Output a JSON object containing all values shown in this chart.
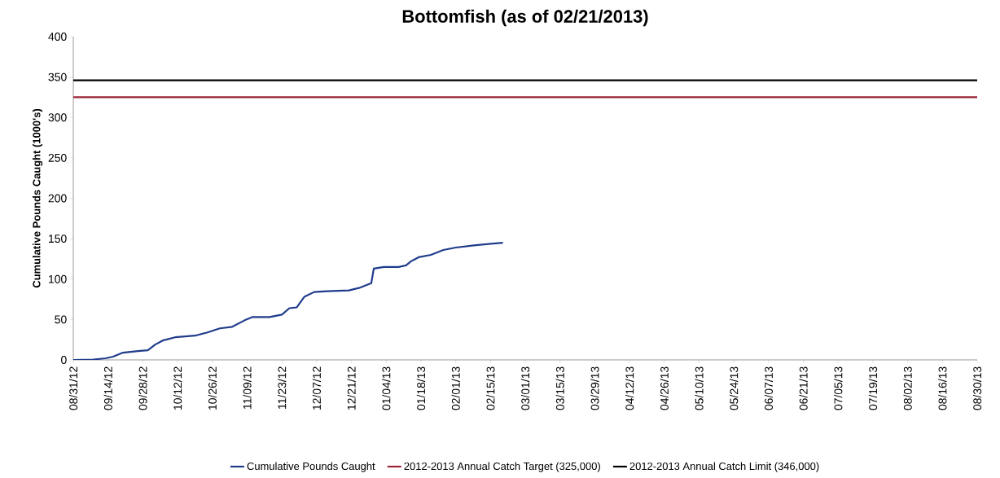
{
  "chart_data": {
    "type": "line",
    "title": "Bottomfish (as of 02/21/2013)",
    "ylabel": "Cumulative Pounds Caught (1000's)",
    "ylim": [
      0,
      400
    ],
    "yticks": [
      0,
      50,
      100,
      150,
      200,
      250,
      300,
      350,
      400
    ],
    "xlim": [
      "2012-08-31",
      "2013-08-30"
    ],
    "xticks": [
      {
        "value": "2012-08-31",
        "label": "08/31/12"
      },
      {
        "value": "2012-09-14",
        "label": "09/14/12"
      },
      {
        "value": "2012-09-28",
        "label": "09/28/12"
      },
      {
        "value": "2012-10-12",
        "label": "10/12/12"
      },
      {
        "value": "2012-10-26",
        "label": "10/26/12"
      },
      {
        "value": "2012-11-09",
        "label": "11/09/12"
      },
      {
        "value": "2012-11-23",
        "label": "11/23/12"
      },
      {
        "value": "2012-12-07",
        "label": "12/07/12"
      },
      {
        "value": "2012-12-21",
        "label": "12/21/12"
      },
      {
        "value": "2013-01-04",
        "label": "01/04/13"
      },
      {
        "value": "2013-01-18",
        "label": "01/18/13"
      },
      {
        "value": "2013-02-01",
        "label": "02/01/13"
      },
      {
        "value": "2013-02-15",
        "label": "02/15/13"
      },
      {
        "value": "2013-03-01",
        "label": "03/01/13"
      },
      {
        "value": "2013-03-15",
        "label": "03/15/13"
      },
      {
        "value": "2013-03-29",
        "label": "03/29/13"
      },
      {
        "value": "2013-04-12",
        "label": "04/12/13"
      },
      {
        "value": "2013-04-26",
        "label": "04/26/13"
      },
      {
        "value": "2013-05-10",
        "label": "05/10/13"
      },
      {
        "value": "2013-05-24",
        "label": "05/24/13"
      },
      {
        "value": "2013-06-07",
        "label": "06/07/13"
      },
      {
        "value": "2013-06-21",
        "label": "06/21/13"
      },
      {
        "value": "2013-07-05",
        "label": "07/05/13"
      },
      {
        "value": "2013-07-19",
        "label": "07/19/13"
      },
      {
        "value": "2013-08-02",
        "label": "08/02/13"
      },
      {
        "value": "2013-08-16",
        "label": "08/16/13"
      },
      {
        "value": "2013-08-30",
        "label": "08/30/13"
      }
    ],
    "legend": "bottom",
    "grid": false,
    "marker": "none",
    "line_style": "solid",
    "series": [
      {
        "name": "Cumulative Pounds Caught",
        "color": "#1f3c8c",
        "x": [
          "2012-08-31",
          "2012-09-08",
          "2012-09-13",
          "2012-09-16",
          "2012-09-20",
          "2012-09-26",
          "2012-09-30",
          "2012-10-03",
          "2012-10-06",
          "2012-10-11",
          "2012-10-19",
          "2012-10-24",
          "2012-10-29",
          "2012-11-03",
          "2012-11-08",
          "2012-11-11",
          "2012-11-18",
          "2012-11-23",
          "2012-11-26",
          "2012-11-29",
          "2012-12-02",
          "2012-12-06",
          "2012-12-11",
          "2012-12-20",
          "2012-12-24",
          "2012-12-29",
          "2012-12-30",
          "2013-01-03",
          "2013-01-09",
          "2013-01-12",
          "2013-01-14",
          "2013-01-17",
          "2013-01-22",
          "2013-01-27",
          "2013-02-01",
          "2013-02-09",
          "2013-02-16",
          "2013-02-20"
        ],
        "values": [
          0,
          0.5,
          2,
          4,
          9,
          11,
          12,
          19,
          24,
          28,
          30,
          34,
          39,
          41,
          49,
          53,
          53,
          56,
          64,
          65,
          78,
          84,
          85,
          86,
          89,
          95,
          113,
          115,
          115,
          117,
          122,
          127,
          130,
          136,
          139,
          142,
          144,
          145
        ]
      },
      {
        "name": "2012-2013 Annual Catch Target (325,000)",
        "color": "#9b2335",
        "x": [
          "2012-08-31",
          "2013-08-30"
        ],
        "values": [
          325,
          325
        ]
      },
      {
        "name": "2012-2013 Annual Catch Limit (346,000)",
        "color": "#000000",
        "x": [
          "2012-08-31",
          "2013-08-30"
        ],
        "values": [
          346,
          346
        ]
      }
    ]
  }
}
